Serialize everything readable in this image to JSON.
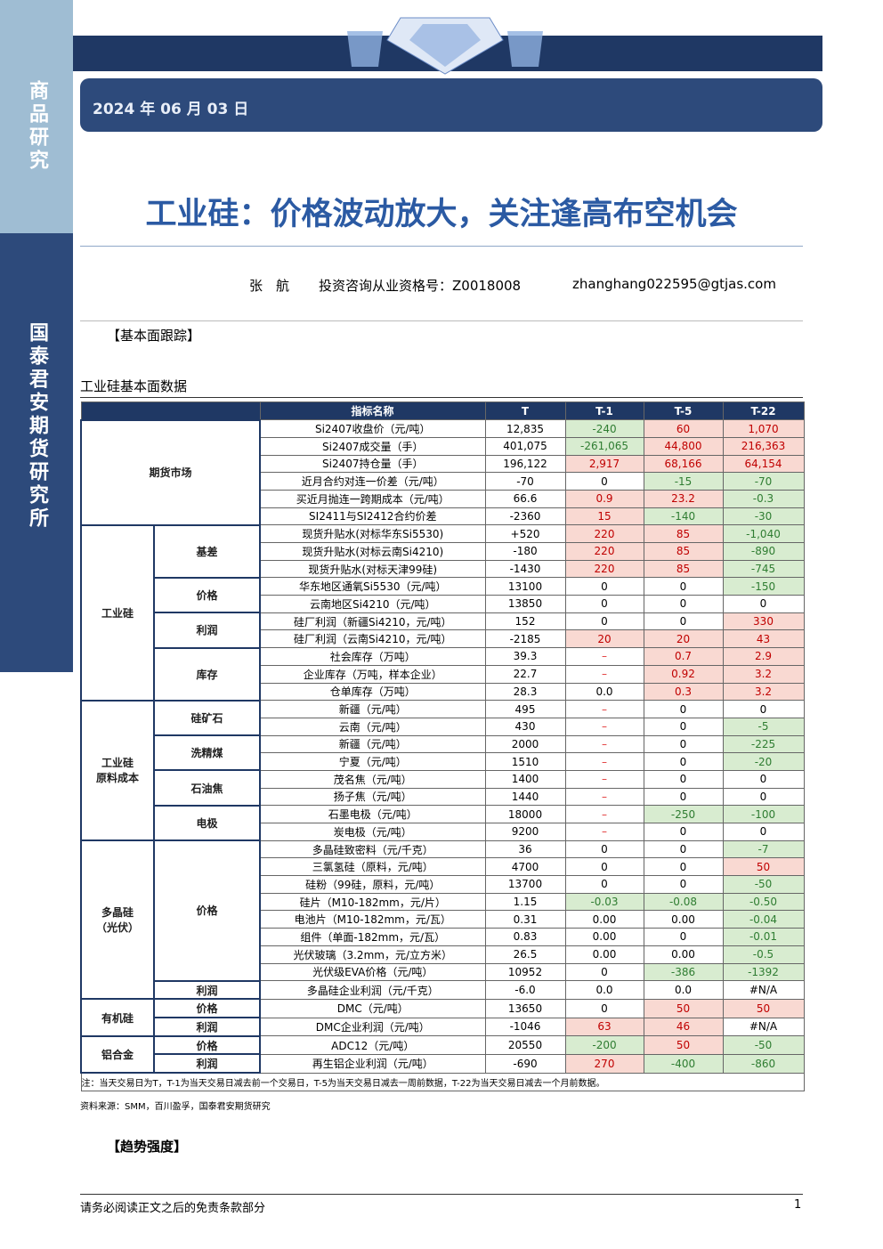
{
  "sidebar": {
    "top": "商品研究",
    "bottom": "国泰君安期货研究所"
  },
  "header": {
    "date": "2024 年 06 月 03 日",
    "title": "工业硅：价格波动放大，关注逢高布空机会"
  },
  "author": {
    "name": "张　航",
    "license": "投资咨询从业资格号：Z0018008",
    "email": "zhanghang022595@gtjas.com"
  },
  "section1": "【基本面跟踪】",
  "table_title": "工业硅基本面数据",
  "table": {
    "header": [
      "指标名称",
      "T",
      "T-1",
      "T-5",
      "T-22"
    ],
    "groups": [
      {
        "name": "期货市场",
        "subgroups": [
          {
            "rows": [
              [
                "Si2407收盘价（元/吨）",
                "12,835",
                "-240",
                "60",
                "1,070"
              ],
              [
                "Si2407成交量（手）",
                "401,075",
                "-261,065",
                "44,800",
                "216,363"
              ],
              [
                "Si2407持仓量（手）",
                "196,122",
                "2,917",
                "68,166",
                "64,154"
              ],
              [
                "近月合约对连一价差（元/吨）",
                "-70",
                "0",
                "-15",
                "-70"
              ],
              [
                "买近月抛连一跨期成本（元/吨）",
                "66.6",
                "0.9",
                "23.2",
                "-0.3"
              ],
              [
                "SI2411与SI2412合约价差",
                "-2360",
                "15",
                "-140",
                "-30"
              ]
            ]
          }
        ]
      },
      {
        "name": "工业硅",
        "subgroups": [
          {
            "name": "基差",
            "rows": [
              [
                "现货升贴水(对标华东Si5530)",
                "+520",
                "220",
                "85",
                "-1,040"
              ],
              [
                "现货升贴水(对标云南Si4210)",
                "-180",
                "220",
                "85",
                "-890"
              ],
              [
                "现货升贴水(对标天津99硅)",
                "-1430",
                "220",
                "85",
                "-745"
              ]
            ]
          },
          {
            "name": "价格",
            "rows": [
              [
                "华东地区通氧Si5530（元/吨）",
                "13100",
                "0",
                "0",
                "-150"
              ],
              [
                "云南地区Si4210（元/吨）",
                "13850",
                "0",
                "0",
                "0"
              ]
            ]
          },
          {
            "name": "利润",
            "rows": [
              [
                "硅厂利润（新疆Si4210，元/吨）",
                "152",
                "0",
                "0",
                "330"
              ],
              [
                "硅厂利润（云南Si4210，元/吨）",
                "-2185",
                "20",
                "20",
                "43"
              ]
            ]
          },
          {
            "name": "库存",
            "rows": [
              [
                "社会库存（万吨）",
                "39.3",
                "–",
                "0.7",
                "2.9"
              ],
              [
                "企业库存（万吨，样本企业）",
                "22.7",
                "–",
                "0.92",
                "3.2"
              ],
              [
                "仓单库存（万吨）",
                "28.3",
                "0.0",
                "0.3",
                "3.2"
              ]
            ]
          }
        ]
      },
      {
        "name": "工业硅\n原料成本",
        "subgroups": [
          {
            "name": "硅矿石",
            "rows": [
              [
                "新疆（元/吨）",
                "495",
                "–",
                "0",
                "0"
              ],
              [
                "云南（元/吨）",
                "430",
                "–",
                "0",
                "-5"
              ]
            ]
          },
          {
            "name": "洗精煤",
            "rows": [
              [
                "新疆（元/吨）",
                "2000",
                "–",
                "0",
                "-225"
              ],
              [
                "宁夏（元/吨）",
                "1510",
                "–",
                "0",
                "-20"
              ]
            ]
          },
          {
            "name": "石油焦",
            "rows": [
              [
                "茂名焦（元/吨）",
                "1400",
                "–",
                "0",
                "0"
              ],
              [
                "扬子焦（元/吨）",
                "1440",
                "–",
                "0",
                "0"
              ]
            ]
          },
          {
            "name": "电极",
            "rows": [
              [
                "石墨电极（元/吨）",
                "18000",
                "–",
                "-250",
                "-100"
              ],
              [
                "炭电极（元/吨）",
                "9200",
                "–",
                "0",
                "0"
              ]
            ]
          }
        ]
      },
      {
        "name": "多晶硅\n（光伏）",
        "subgroups": [
          {
            "name": "价格",
            "rows": [
              [
                "多晶硅致密料（元/千克）",
                "36",
                "0",
                "0",
                "-7"
              ],
              [
                "三氯氢硅（原料，元/吨）",
                "4700",
                "0",
                "0",
                "50"
              ],
              [
                "硅粉（99硅，原料，元/吨）",
                "13700",
                "0",
                "0",
                "-50"
              ],
              [
                "硅片（M10-182mm，元/片）",
                "1.15",
                "-0.03",
                "-0.08",
                "-0.50"
              ],
              [
                "电池片（M10-182mm，元/瓦）",
                "0.31",
                "0.00",
                "0.00",
                "-0.04"
              ],
              [
                "组件（单面-182mm，元/瓦）",
                "0.83",
                "0.00",
                "0",
                "-0.01"
              ],
              [
                "光伏玻璃（3.2mm，元/立方米）",
                "26.5",
                "0.00",
                "0.00",
                "-0.5"
              ],
              [
                "光伏级EVA价格（元/吨）",
                "10952",
                "0",
                "-386",
                "-1392"
              ]
            ]
          },
          {
            "name": "利润",
            "rows": [
              [
                "多晶硅企业利润（元/千克）",
                "-6.0",
                "0.0",
                "0.0",
                "#N/A"
              ]
            ]
          }
        ]
      },
      {
        "name": "有机硅",
        "subgroups": [
          {
            "name": "价格",
            "rows": [
              [
                "DMC（元/吨）",
                "13650",
                "0",
                "50",
                "50"
              ]
            ]
          },
          {
            "name": "利润",
            "rows": [
              [
                "DMC企业利润（元/吨）",
                "-1046",
                "63",
                "46",
                "#N/A"
              ]
            ]
          }
        ]
      },
      {
        "name": "铝合金",
        "subgroups": [
          {
            "name": "价格",
            "rows": [
              [
                "ADC12（元/吨）",
                "20550",
                "-200",
                "50",
                "-50"
              ]
            ]
          },
          {
            "name": "利润",
            "rows": [
              [
                "再生铝企业利润（元/吨）",
                "-690",
                "270",
                "-400",
                "-860"
              ]
            ]
          }
        ]
      }
    ],
    "note": "注：当天交易日为T，T-1为当天交易日减去前一个交易日，T-5为当天交易日减去一周前数据，T-22为当天交易日减去一个月前数据。"
  },
  "source": "资料来源：SMM，百川盈孚，国泰君安期货研究",
  "section2": "【趋势强度】",
  "footer": {
    "disclaimer": "请务必阅读正文之后的免责条款部分",
    "page": "1"
  }
}
